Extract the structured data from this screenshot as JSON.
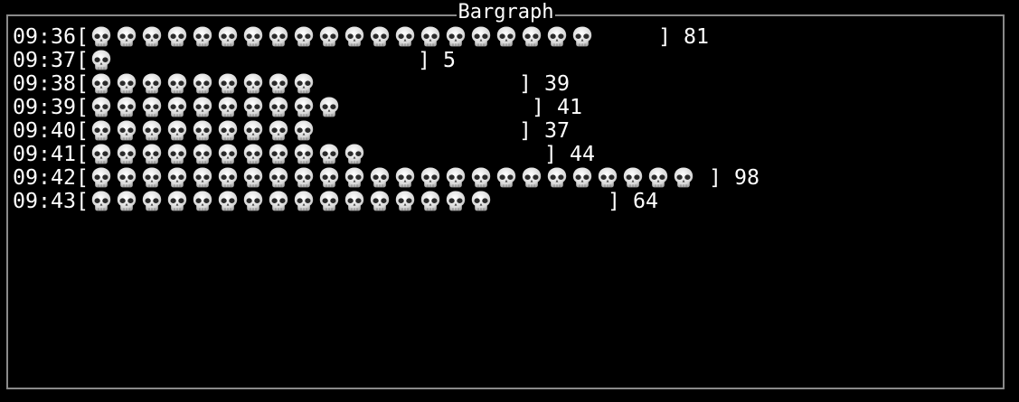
{
  "window": {
    "title": "Bargraph",
    "border_color": "#8a8a8a",
    "background": "#000000",
    "text_color": "#ffffff"
  },
  "bar": {
    "icon": "skull-icon",
    "units_per_icon": 4,
    "width_in_icons": 25,
    "open_bracket": "[",
    "close_bracket": "]"
  },
  "rows": [
    {
      "time": "09:36",
      "value": "81"
    },
    {
      "time": "09:37",
      "value": "5"
    },
    {
      "time": "09:38",
      "value": "39"
    },
    {
      "time": "09:39",
      "value": "41"
    },
    {
      "time": "09:40",
      "value": "37"
    },
    {
      "time": "09:41",
      "value": "44"
    },
    {
      "time": "09:42",
      "value": "98"
    },
    {
      "time": "09:43",
      "value": "64"
    }
  ]
}
